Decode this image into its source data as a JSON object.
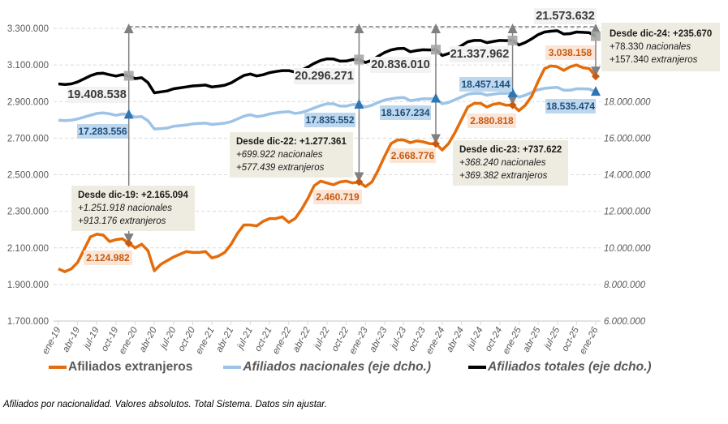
{
  "chart_data": {
    "type": "line",
    "caption": "Afiliados por nacionalidad. Valores absolutos. Total Sistema. Datos sin ajustar.",
    "categories": [
      "ene-19",
      "feb-19",
      "mar-19",
      "abr-19",
      "may-19",
      "jun-19",
      "jul-19",
      "ago-19",
      "sep-19",
      "oct-19",
      "nov-19",
      "dic-19",
      "ene-20",
      "feb-20",
      "mar-20",
      "abr-20",
      "may-20",
      "jun-20",
      "jul-20",
      "ago-20",
      "sep-20",
      "oct-20",
      "nov-20",
      "dic-20",
      "ene-21",
      "feb-21",
      "mar-21",
      "abr-21",
      "may-21",
      "jun-21",
      "jul-21",
      "ago-21",
      "sep-21",
      "oct-21",
      "nov-21",
      "dic-21",
      "ene-22",
      "feb-22",
      "mar-22",
      "abr-22",
      "may-22",
      "jun-22",
      "jul-22",
      "ago-22",
      "sep-22",
      "oct-22",
      "nov-22",
      "dic-22",
      "ene-23",
      "feb-23",
      "mar-23",
      "abr-23",
      "may-23",
      "jun-23",
      "jul-23",
      "ago-23",
      "sep-23",
      "oct-23",
      "nov-23",
      "dic-23",
      "ene-24",
      "feb-24",
      "mar-24",
      "abr-24",
      "may-24",
      "jun-24",
      "jul-24",
      "ago-24",
      "sep-24",
      "oct-24",
      "nov-24",
      "dic-24",
      "ene-25",
      "feb-25",
      "mar-25",
      "abr-25",
      "may-25",
      "jun-25",
      "jul-25",
      "ago-25",
      "sep-25",
      "oct-25",
      "nov-25",
      "dic-25",
      "ene-26"
    ],
    "x_tick_labels": [
      "ene-19",
      "abr-19",
      "jul-19",
      "oct-19",
      "ene-20",
      "abr-20",
      "jul-20",
      "oct-20",
      "ene-21",
      "abr-21",
      "jul-21",
      "oct-21",
      "ene-22",
      "abr-22",
      "jul-22",
      "oct-22",
      "ene-23",
      "abr-23",
      "jul-23",
      "oct-23",
      "ene-24",
      "abr-24",
      "jul-24",
      "oct-24",
      "ene-25",
      "abr-25",
      "jul-25",
      "oct-25",
      "ene-26"
    ],
    "y_left": {
      "range": [
        1700000,
        3300000
      ],
      "ticks": [
        "1.700.000",
        "1.900.000",
        "2.100.000",
        "2.300.000",
        "2.500.000",
        "2.700.000",
        "2.900.000",
        "3.100.000",
        "3.300.000"
      ]
    },
    "y_right": {
      "range": [
        6000000,
        22000000
      ],
      "ticks": [
        "6.000.000",
        "8.000.000",
        "10.000.000",
        "12.000.000",
        "14.000.000",
        "16.000.000",
        "18.000.000"
      ]
    },
    "grid": true,
    "legend_position": "bottom",
    "series": [
      {
        "name": "Afiliados extranjeros",
        "axis": "left",
        "color": "#e46c0a",
        "values": [
          1985000,
          1970000,
          1985000,
          2020000,
          2090000,
          2160000,
          2175000,
          2170000,
          2135000,
          2145000,
          2150000,
          2124982,
          2100000,
          2120000,
          2085000,
          1975000,
          2010000,
          2030000,
          2050000,
          2065000,
          2080000,
          2075000,
          2075000,
          2080000,
          2045000,
          2055000,
          2075000,
          2120000,
          2180000,
          2225000,
          2225000,
          2220000,
          2245000,
          2260000,
          2260000,
          2270000,
          2240000,
          2260000,
          2310000,
          2370000,
          2440000,
          2465000,
          2455000,
          2445000,
          2460000,
          2465000,
          2455000,
          2460719,
          2435000,
          2460000,
          2525000,
          2600000,
          2670000,
          2690000,
          2690000,
          2675000,
          2685000,
          2680000,
          2670000,
          2668776,
          2635000,
          2670000,
          2730000,
          2800000,
          2870000,
          2890000,
          2890000,
          2870000,
          2885000,
          2890000,
          2880000,
          2880818,
          2850000,
          2880000,
          2930000,
          3010000,
          3080000,
          3095000,
          3090000,
          3070000,
          3090000,
          3100000,
          3085000,
          3080000,
          3038158
        ]
      },
      {
        "name": "Afiliados nacionales (eje dcho.)",
        "axis": "right",
        "color": "#9dc3e6",
        "values": [
          16980000,
          16960000,
          16980000,
          17050000,
          17150000,
          17250000,
          17350000,
          17380000,
          17330000,
          17250000,
          17320000,
          17283556,
          17150000,
          17180000,
          16950000,
          16500000,
          16520000,
          16550000,
          16650000,
          16680000,
          16720000,
          16780000,
          16800000,
          16820000,
          16750000,
          16780000,
          16820000,
          16900000,
          17050000,
          17200000,
          17280000,
          17180000,
          17220000,
          17320000,
          17380000,
          17420000,
          17450000,
          17350000,
          17400000,
          17520000,
          17650000,
          17780000,
          17880000,
          17880000,
          17750000,
          17750000,
          17840000,
          17835552,
          17700000,
          17800000,
          17950000,
          18080000,
          18150000,
          18200000,
          18220000,
          18050000,
          18100000,
          18150000,
          18150000,
          18167234,
          17880000,
          17950000,
          18100000,
          18250000,
          18400000,
          18450000,
          18450000,
          18350000,
          18400000,
          18450000,
          18450000,
          18457144,
          18240000,
          18350000,
          18500000,
          18650000,
          18720000,
          18750000,
          18780000,
          18620000,
          18620000,
          18700000,
          18700000,
          18680000,
          18535474
        ]
      },
      {
        "name": "Afiliados totales (eje dcho.)",
        "axis": "right",
        "color": "#000000",
        "values": [
          18965000,
          18930000,
          18965000,
          19070000,
          19240000,
          19410000,
          19525000,
          19550000,
          19465000,
          19395000,
          19470000,
          19408538,
          19250000,
          19300000,
          19035000,
          18475000,
          18530000,
          18580000,
          18700000,
          18745000,
          18800000,
          18855000,
          18875000,
          18900000,
          18795000,
          18835000,
          18895000,
          19020000,
          19230000,
          19425000,
          19505000,
          19400000,
          19465000,
          19580000,
          19640000,
          19690000,
          19690000,
          19610000,
          19710000,
          19890000,
          20090000,
          20245000,
          20335000,
          20325000,
          20210000,
          20215000,
          20295000,
          20296271,
          20135000,
          20260000,
          20475000,
          20680000,
          20820000,
          20890000,
          20910000,
          20725000,
          20785000,
          20830000,
          20820000,
          20836010,
          20515000,
          20620000,
          20830000,
          21050000,
          21270000,
          21340000,
          21340000,
          21220000,
          21285000,
          21340000,
          21330000,
          21337962,
          21090000,
          21230000,
          21430000,
          21660000,
          21800000,
          21845000,
          21870000,
          21690000,
          21710000,
          21800000,
          21785000,
          21760000,
          21573632
        ]
      }
    ],
    "highlights": [
      {
        "category": "dic-19",
        "total": "19.408.538",
        "nacionales": "17.283.556",
        "extranjeros": "2.124.982",
        "note": {
          "title": "Desde dic-19: +2.165.094",
          "nac": "+1.251.918 nacionales",
          "ext": "+913.176 extranjeros"
        }
      },
      {
        "category": "dic-22",
        "total": "20.296.271",
        "nacionales": "17.835.552",
        "extranjeros": "2.460.719",
        "note": {
          "title": "Desde dic-22: +1.277.361",
          "nac": "+699.922 nacionales",
          "ext": "+577.439 extranjeros"
        }
      },
      {
        "category": "dic-23",
        "total": "20.836.010",
        "nacionales": "18.167.234",
        "extranjeros": "2.668.776",
        "note": {
          "title": "Desde dic-23: +737.622",
          "nac": "+368.240 nacionales",
          "ext": "+369.382 extranjeros"
        }
      },
      {
        "category": "dic-24",
        "total": "21.337.962",
        "nacionales": "18.457.144",
        "extranjeros": "2.880.818",
        "note": {
          "title": "Desde dic-24: +235.670",
          "nac_num": "+78.330",
          "nac": "nacionales",
          "ext_num": "+157.340",
          "ext": "extranjeros"
        }
      },
      {
        "category": "ene-26",
        "total": "21.573.632",
        "nacionales": "18.535.474",
        "extranjeros": "3.038.158"
      }
    ]
  }
}
